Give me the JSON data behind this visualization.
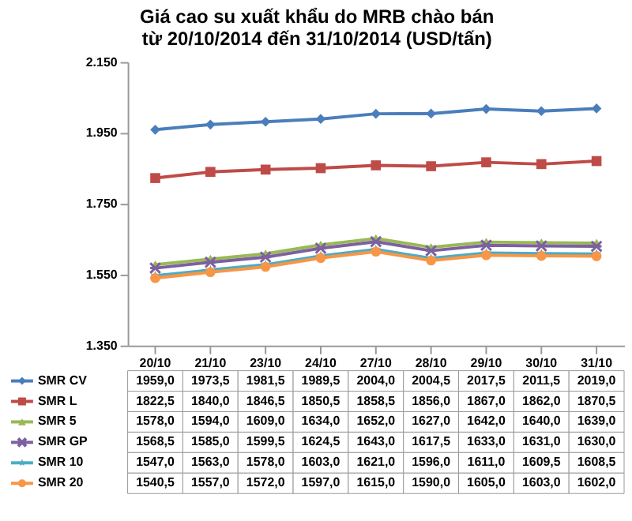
{
  "chart_data": {
    "type": "line",
    "title": "Giá cao su xuất khẩu do MRB chào bán\ntừ 20/10/2014 đến 31/10/2014  (USD/tấn)",
    "categories": [
      "20/10",
      "21/10",
      "23/10",
      "24/10",
      "27/10",
      "28/10",
      "29/10",
      "30/10",
      "31/10"
    ],
    "ylim": [
      1350,
      2150
    ],
    "yticks": [
      {
        "value": 1350,
        "label": "1.350"
      },
      {
        "value": 1550,
        "label": "1.550"
      },
      {
        "value": 1750,
        "label": "1.750"
      },
      {
        "value": 1950,
        "label": "1.950"
      },
      {
        "value": 2150,
        "label": "2.150"
      }
    ],
    "grid": false,
    "legend": "bottom",
    "series": [
      {
        "name": "SMR CV",
        "color": "#4a7ebb",
        "marker": "diamond",
        "values": [
          1959.0,
          1973.5,
          1981.5,
          1989.5,
          2004.0,
          2004.5,
          2017.5,
          2011.5,
          2019.0
        ],
        "value_labels": [
          "1959,0",
          "1973,5",
          "1981,5",
          "1989,5",
          "2004,0",
          "2004,5",
          "2017,5",
          "2011,5",
          "2019,0"
        ]
      },
      {
        "name": "SMR L",
        "color": "#be4b48",
        "marker": "square",
        "values": [
          1822.5,
          1840.0,
          1846.5,
          1850.5,
          1858.5,
          1856.0,
          1867.0,
          1862.0,
          1870.5
        ],
        "value_labels": [
          "1822,5",
          "1840,0",
          "1846,5",
          "1850,5",
          "1858,5",
          "1856,0",
          "1867,0",
          "1862,0",
          "1870,5"
        ]
      },
      {
        "name": "SMR  5",
        "color": "#98b954",
        "marker": "triangle",
        "values": [
          1578.0,
          1594.0,
          1609.0,
          1634.0,
          1652.0,
          1627.0,
          1642.0,
          1640.0,
          1639.0
        ],
        "value_labels": [
          "1578,0",
          "1594,0",
          "1609,0",
          "1634,0",
          "1652,0",
          "1627,0",
          "1642,0",
          "1640,0",
          "1639,0"
        ]
      },
      {
        "name": "SMR GP",
        "color": "#7d60a0",
        "marker": "cross",
        "values": [
          1568.5,
          1585.0,
          1599.5,
          1624.5,
          1643.0,
          1617.5,
          1633.0,
          1631.0,
          1630.0
        ],
        "value_labels": [
          "1568,5",
          "1585,0",
          "1599,5",
          "1624,5",
          "1643,0",
          "1617,5",
          "1633,0",
          "1631,0",
          "1630,0"
        ]
      },
      {
        "name": "SMR  10",
        "color": "#4bacc6",
        "marker": "star",
        "values": [
          1547.0,
          1563.0,
          1578.0,
          1603.0,
          1621.0,
          1596.0,
          1611.0,
          1609.5,
          1608.5
        ],
        "value_labels": [
          "1547,0",
          "1563,0",
          "1578,0",
          "1603,0",
          "1621,0",
          "1596,0",
          "1611,0",
          "1609,5",
          "1608,5"
        ]
      },
      {
        "name": "SMR 20",
        "color": "#f79646",
        "marker": "circle",
        "values": [
          1540.5,
          1557.0,
          1572.0,
          1597.0,
          1615.0,
          1590.0,
          1605.0,
          1603.0,
          1602.0
        ],
        "value_labels": [
          "1540,5",
          "1557,0",
          "1572,0",
          "1597,0",
          "1615,0",
          "1590,0",
          "1605,0",
          "1603,0",
          "1602,0"
        ]
      }
    ]
  }
}
